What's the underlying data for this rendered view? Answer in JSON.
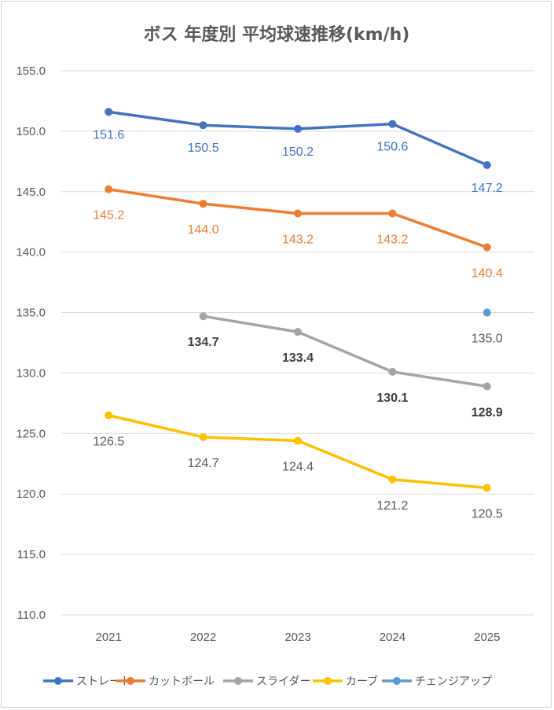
{
  "chart_data": {
    "type": "line",
    "title": "ボス 年度別 平均球速推移(km/h)",
    "xlabel": "",
    "ylabel": "",
    "categories": [
      "2021",
      "2022",
      "2023",
      "2024",
      "2025"
    ],
    "ylim": [
      110.0,
      155.0
    ],
    "ytick_step": 5,
    "yticks": [
      "110.0",
      "115.0",
      "120.0",
      "125.0",
      "130.0",
      "135.0",
      "140.0",
      "145.0",
      "150.0",
      "155.0"
    ],
    "grid": true,
    "legend_position": "bottom",
    "series": [
      {
        "name": "ストレート",
        "color": "#4472C4",
        "label_color": "#4472C4",
        "label_bold": false,
        "values": [
          151.6,
          150.5,
          150.2,
          150.6,
          147.2
        ],
        "labels": [
          "151.6",
          "150.5",
          "150.2",
          "150.6",
          "147.2"
        ]
      },
      {
        "name": "カットボール",
        "color": "#ED7D31",
        "label_color": "#ED7D31",
        "label_bold": false,
        "values": [
          145.2,
          144.0,
          143.2,
          143.2,
          140.4
        ],
        "labels": [
          "145.2",
          "144.0",
          "143.2",
          "143.2",
          "140.4"
        ]
      },
      {
        "name": "スライダー",
        "color": "#A5A5A5",
        "label_color": "#404040",
        "label_bold": true,
        "values": [
          null,
          134.7,
          133.4,
          130.1,
          128.9
        ],
        "labels": [
          null,
          "134.7",
          "133.4",
          "130.1",
          "128.9"
        ]
      },
      {
        "name": "カーブ",
        "color": "#FFC000",
        "label_color": "#595959",
        "label_bold": false,
        "values": [
          126.5,
          124.7,
          124.4,
          121.2,
          120.5
        ],
        "labels": [
          "126.5",
          "124.7",
          "124.4",
          "121.2",
          "120.5"
        ]
      },
      {
        "name": "チェンジアップ",
        "color": "#5B9BD5",
        "label_color": "#595959",
        "label_bold": false,
        "values": [
          null,
          null,
          null,
          null,
          135.0
        ],
        "labels": [
          null,
          null,
          null,
          null,
          "135.0"
        ]
      }
    ]
  }
}
